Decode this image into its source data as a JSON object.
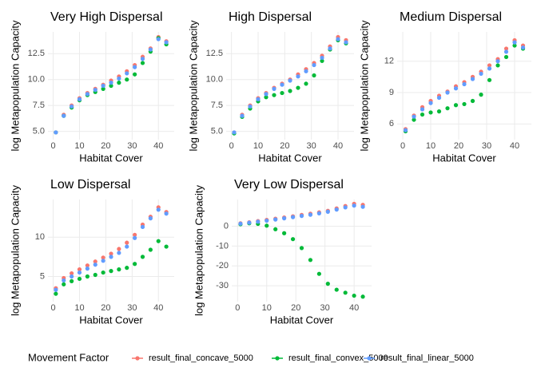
{
  "legend_title": "Movement Factor",
  "chart_data": [
    {
      "type": "scatter",
      "title": "Very High Dispersal",
      "x_label": "Habitat Cover",
      "y_label": "log Metapopulation Capacity",
      "x": [
        1,
        4,
        7,
        10,
        13,
        16,
        19,
        22,
        25,
        28,
        31,
        34,
        37,
        40,
        43
      ],
      "series": [
        {
          "name": "result_final_concave_5000",
          "color": "#F8766D",
          "values": [
            4.9,
            6.6,
            7.5,
            8.2,
            8.7,
            9.1,
            9.5,
            9.9,
            10.3,
            10.8,
            11.4,
            12.2,
            13.0,
            14.1,
            13.7
          ]
        },
        {
          "name": "result_final_convex_5000",
          "color": "#00BA38",
          "values": [
            4.9,
            6.5,
            7.3,
            8.0,
            8.5,
            8.8,
            9.1,
            9.4,
            9.7,
            10.0,
            10.5,
            11.6,
            12.7,
            14.0,
            13.4
          ]
        },
        {
          "name": "result_final_linear_5000",
          "color": "#619CFF",
          "values": [
            4.9,
            6.5,
            7.4,
            8.1,
            8.6,
            9.0,
            9.4,
            9.7,
            10.1,
            10.6,
            11.2,
            12.0,
            12.9,
            13.9,
            13.6
          ]
        }
      ],
      "xlim": [
        -2,
        46
      ],
      "ylim": [
        4.2,
        14.6
      ],
      "xticks": [
        0,
        10,
        20,
        30,
        40
      ],
      "yticks": [
        {
          "value": 5,
          "label": "5.0"
        },
        7.5,
        {
          "value": 10,
          "label": "10.0"
        },
        12.5
      ],
      "grid": true
    },
    {
      "type": "scatter",
      "title": "High Dispersal",
      "x_label": "Habitat Cover",
      "y_label": "log Metapopulation Capacity",
      "x": [
        1,
        4,
        7,
        10,
        13,
        16,
        19,
        22,
        25,
        28,
        31,
        34,
        37,
        40,
        43
      ],
      "series": [
        {
          "name": "result_final_concave_5000",
          "color": "#F8766D",
          "values": [
            4.9,
            6.6,
            7.5,
            8.2,
            8.7,
            9.2,
            9.6,
            10.0,
            10.5,
            11.0,
            11.6,
            12.3,
            13.2,
            14.1,
            13.8
          ]
        },
        {
          "name": "result_final_convex_5000",
          "color": "#00BA38",
          "values": [
            4.8,
            6.4,
            7.2,
            7.9,
            8.3,
            8.5,
            8.7,
            8.9,
            9.2,
            9.6,
            10.4,
            11.8,
            12.9,
            13.8,
            13.5
          ]
        },
        {
          "name": "result_final_linear_5000",
          "color": "#619CFF",
          "values": [
            4.9,
            6.5,
            7.4,
            8.1,
            8.6,
            9.1,
            9.5,
            9.9,
            10.3,
            10.8,
            11.4,
            12.1,
            13.0,
            13.9,
            13.6
          ]
        }
      ],
      "xlim": [
        -2,
        46
      ],
      "ylim": [
        4.2,
        14.6
      ],
      "xticks": [
        0,
        10,
        20,
        30,
        40
      ],
      "yticks": [
        {
          "value": 5,
          "label": "5.0"
        },
        7.5,
        {
          "value": 10,
          "label": "10.0"
        },
        12.5
      ],
      "grid": true
    },
    {
      "type": "scatter",
      "title": "Medium Dispersal",
      "x_label": "Habitat Cover",
      "y_label": "log Metapopulation Capacity",
      "x": [
        1,
        4,
        7,
        10,
        13,
        16,
        19,
        22,
        25,
        28,
        31,
        34,
        37,
        40,
        43
      ],
      "series": [
        {
          "name": "result_final_concave_5000",
          "color": "#F8766D",
          "values": [
            5.5,
            6.8,
            7.6,
            8.2,
            8.7,
            9.1,
            9.6,
            10.0,
            10.5,
            11.0,
            11.6,
            12.2,
            13.2,
            14.0,
            13.5
          ]
        },
        {
          "name": "result_final_convex_5000",
          "color": "#00BA38",
          "values": [
            5.3,
            6.4,
            6.9,
            7.1,
            7.2,
            7.5,
            7.8,
            7.9,
            8.2,
            8.8,
            10.2,
            11.6,
            12.4,
            13.5,
            13.2
          ]
        },
        {
          "name": "result_final_linear_5000",
          "color": "#619CFF",
          "values": [
            5.4,
            6.7,
            7.4,
            8.0,
            8.5,
            9.0,
            9.4,
            9.8,
            10.3,
            10.8,
            11.3,
            12.0,
            12.9,
            13.8,
            13.3
          ]
        }
      ],
      "xlim": [
        -2,
        46
      ],
      "ylim": [
        4.5,
        14.8
      ],
      "xticks": [
        0,
        10,
        20,
        30,
        40
      ],
      "yticks": [
        6,
        9,
        12
      ],
      "grid": true
    },
    {
      "type": "scatter",
      "title": "Low Dispersal",
      "x_label": "Habitat Cover",
      "y_label": "log Metapopulation Capacity",
      "x": [
        1,
        4,
        7,
        10,
        13,
        16,
        19,
        22,
        25,
        28,
        31,
        34,
        37,
        40,
        43
      ],
      "series": [
        {
          "name": "result_final_concave_5000",
          "color": "#F8766D",
          "values": [
            3.5,
            4.8,
            5.4,
            5.9,
            6.4,
            6.9,
            7.4,
            7.9,
            8.5,
            9.3,
            10.3,
            11.6,
            12.6,
            13.8,
            13.2
          ]
        },
        {
          "name": "result_final_convex_5000",
          "color": "#00BA38",
          "values": [
            2.8,
            4.0,
            4.4,
            4.7,
            5.0,
            5.2,
            5.5,
            5.7,
            5.9,
            6.1,
            6.6,
            7.5,
            8.4,
            9.5,
            8.8
          ]
        },
        {
          "name": "result_final_linear_5000",
          "color": "#619CFF",
          "values": [
            3.3,
            4.5,
            5.0,
            5.5,
            6.0,
            6.5,
            7.0,
            7.5,
            8.0,
            8.8,
            9.9,
            11.3,
            12.4,
            13.5,
            13.0
          ]
        }
      ],
      "xlim": [
        -2,
        46
      ],
      "ylim": [
        1.8,
        14.8
      ],
      "xticks": [
        0,
        10,
        20,
        30,
        40
      ],
      "yticks": [
        5,
        10
      ],
      "grid": true
    },
    {
      "type": "scatter",
      "title": "Very Low Dispersal",
      "x_label": "Habitat Cover",
      "y_label": "log Metapopulation Capacity",
      "x": [
        1,
        4,
        7,
        10,
        13,
        16,
        19,
        22,
        25,
        28,
        31,
        34,
        37,
        40,
        43
      ],
      "series": [
        {
          "name": "result_final_concave_5000",
          "color": "#F8766D",
          "values": [
            1.5,
            2.0,
            2.6,
            3.2,
            3.8,
            4.4,
            5.0,
            5.7,
            6.3,
            7.0,
            7.8,
            9.0,
            10.2,
            11.3,
            10.8
          ]
        },
        {
          "name": "result_final_convex_5000",
          "color": "#00BA38",
          "values": [
            1.0,
            1.5,
            1.2,
            0.3,
            -1.5,
            -3.5,
            -6.5,
            -11,
            -17,
            -24,
            -29,
            -32,
            -33.5,
            -35,
            -35.5
          ]
        },
        {
          "name": "result_final_linear_5000",
          "color": "#619CFF",
          "values": [
            1.3,
            1.8,
            2.3,
            2.8,
            3.4,
            4.0,
            4.6,
            5.2,
            5.8,
            6.5,
            7.3,
            8.4,
            9.5,
            10.4,
            9.8
          ]
        }
      ],
      "xlim": [
        -2,
        46
      ],
      "ylim": [
        -38,
        13.5
      ],
      "xticks": [
        0,
        10,
        20,
        30,
        40
      ],
      "yticks": [
        -30,
        -20,
        -10,
        0
      ],
      "grid": true
    }
  ]
}
